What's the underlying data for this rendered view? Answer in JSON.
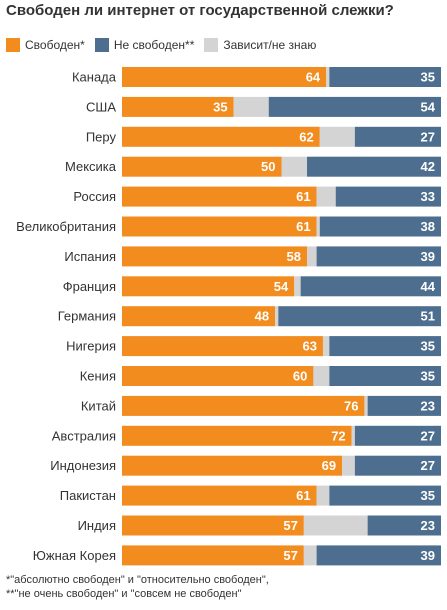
{
  "title": "Свободен ли интернет от государственной слежки?",
  "colors": {
    "free": "#f28c1e",
    "not_free": "#4d6e8e",
    "depends": "#d4d4d4"
  },
  "chart_data": {
    "type": "bar",
    "orientation": "horizontal",
    "stacked": true,
    "title": "Свободен ли интернет от государственной слежки?",
    "categories": [
      "Канада",
      "США",
      "Перу",
      "Мексика",
      "Россия",
      "Великобритания",
      "Испания",
      "Франция",
      "Германия",
      "Нигерия",
      "Кения",
      "Китай",
      "Австралия",
      "Индонезия",
      "Пакистан",
      "Индия",
      "Южная Корея"
    ],
    "series": [
      {
        "name": "Свободен*",
        "color": "#f28c1e",
        "values": [
          64,
          35,
          62,
          50,
          61,
          61,
          58,
          54,
          48,
          63,
          60,
          76,
          72,
          69,
          61,
          57,
          57
        ]
      },
      {
        "name": "Зависит/не знаю",
        "color": "#d4d4d4",
        "values": [
          1,
          11,
          11,
          8,
          6,
          1,
          3,
          2,
          1,
          2,
          5,
          1,
          1,
          4,
          4,
          20,
          4
        ]
      },
      {
        "name": "Не свободен**",
        "color": "#4d6e8e",
        "values": [
          35,
          54,
          27,
          42,
          33,
          38,
          39,
          44,
          51,
          35,
          35,
          23,
          27,
          27,
          35,
          23,
          39
        ]
      }
    ],
    "legend_order": [
      "Свободен*",
      "Не свободен**",
      "Зависит/не знаю"
    ],
    "value_labels_shown_for": [
      "Свободен*",
      "Не свободен**"
    ],
    "xlim": [
      0,
      100
    ],
    "units": "percent",
    "grid": false,
    "legend_position": "top-left"
  },
  "legend": [
    {
      "label": "Свободен*",
      "color": "#f28c1e"
    },
    {
      "label": "Не свободен**",
      "color": "#4d6e8e"
    },
    {
      "label": "Зависит/не знаю",
      "color": "#d4d4d4"
    }
  ],
  "footnotes": [
    "*\"абсолютно свободен\" и \"относительно свободен\",",
    "**\"не очень свободен\" и \"совсем не свободен\""
  ]
}
